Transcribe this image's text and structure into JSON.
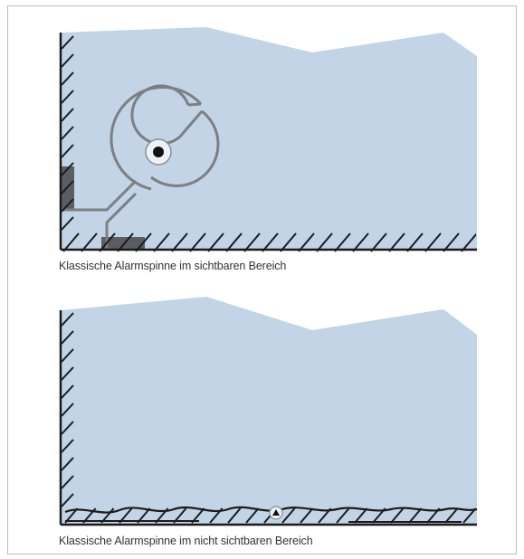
{
  "colors": {
    "wall_fill": "#c2d4e6",
    "hatch": "#1b1b1b",
    "spider_outline": "#7c7f84",
    "sensor_shadow": "#5a5d62"
  },
  "panels": [
    {
      "caption": "Klassische Alarmspinne im sichtbaren Bereich",
      "variant": "visible"
    },
    {
      "caption": "Klassische Alarmspinne im nicht sichtbaren Bereich",
      "variant": "hidden"
    }
  ]
}
